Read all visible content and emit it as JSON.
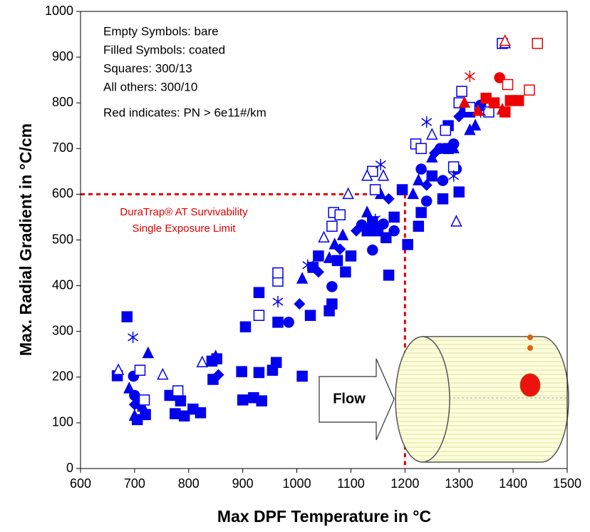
{
  "chart_data": {
    "type": "scatter",
    "x_label": "Max DPF Temperature in °C",
    "y_label": "Max. Radial Gradient in °C/cm",
    "notes": [
      "Empty Symbols: bare",
      "Filled Symbols: coated",
      "Squares: 300/13",
      "All others: 300/10",
      "Red indicates: PN > 6e11#/km"
    ],
    "limit_label": [
      "DuraTrap® AT Survivability",
      "Single Exposure Limit"
    ],
    "flow_label": "Flow",
    "limit": {
      "x": 1200,
      "y": 600,
      "color": "#e00000"
    },
    "xlim": [
      600,
      1500
    ],
    "xticks": [
      600,
      700,
      800,
      900,
      1000,
      1100,
      1200,
      1300,
      1400,
      1500
    ],
    "ylim": [
      0,
      1000
    ],
    "yticks": [
      0,
      100,
      200,
      300,
      400,
      500,
      600,
      700,
      800,
      900,
      1000
    ],
    "series": [
      {
        "color": "#0000ee",
        "marker": "square",
        "filled": true,
        "x": [
          686,
          668,
          705,
          720,
          765,
          785,
          792,
          775,
          808,
          822,
          843,
          845,
          852,
          898,
          900,
          905,
          920,
          930,
          935,
          930,
          955,
          962,
          965,
          1010,
          1025,
          1030,
          1040,
          1060,
          1065,
          1075,
          1090,
          1100,
          1130,
          1140,
          1150,
          1165,
          1170,
          1180,
          1195,
          1205,
          1225,
          1230,
          1250,
          1270,
          1300,
          1280,
          1320,
          1280
        ],
        "values": [
          332,
          203,
          107,
          118,
          160,
          148,
          115,
          120,
          130,
          122,
          235,
          195,
          240,
          212,
          150,
          310,
          155,
          210,
          148,
          385,
          215,
          232,
          320,
          202,
          335,
          440,
          465,
          345,
          360,
          455,
          430,
          465,
          520,
          540,
          520,
          505,
          423,
          550,
          610,
          490,
          530,
          560,
          640,
          590,
          605,
          750,
          780,
          700
        ]
      },
      {
        "color": "#0000ee",
        "marker": "circle",
        "filled": true,
        "x": [
          698,
          700,
          710,
          985,
          1065,
          1120,
          1140,
          1160,
          1180,
          1240,
          1230,
          1270,
          1290,
          1295,
          1310,
          1340,
          1265
        ],
        "values": [
          202,
          160,
          140,
          320,
          398,
          533,
          478,
          535,
          520,
          585,
          655,
          630,
          710,
          655,
          780,
          795,
          700
        ]
      },
      {
        "color": "#0000ee",
        "marker": "triangle",
        "filled": true,
        "x": [
          690,
          700,
          715,
          725,
          850,
          1010,
          1030,
          1060,
          1070,
          1085,
          1130,
          1155,
          1215,
          1225,
          1250,
          1290,
          1320,
          1330
        ],
        "values": [
          175,
          115,
          135,
          252,
          245,
          415,
          440,
          460,
          490,
          510,
          560,
          600,
          600,
          630,
          680,
          700,
          740,
          750
        ]
      },
      {
        "color": "#0000ee",
        "marker": "diamond",
        "filled": true,
        "x": [
          700,
          855,
          1005,
          1040,
          1080,
          1110,
          1170,
          1240,
          1255,
          1300
        ],
        "values": [
          140,
          205,
          360,
          430,
          480,
          520,
          590,
          620,
          690,
          770
        ]
      },
      {
        "color": "#0000ee",
        "marker": "square",
        "filled": false,
        "x": [
          710,
          718,
          780,
          930,
          965,
          965,
          1065,
          1068,
          1080,
          1140,
          1145,
          1220,
          1230,
          1275,
          1300,
          1305,
          1290,
          1320,
          1355,
          1380
        ],
        "values": [
          215,
          150,
          170,
          335,
          410,
          428,
          530,
          560,
          555,
          650,
          610,
          710,
          700,
          740,
          800,
          825,
          660,
          790,
          780,
          930
        ]
      },
      {
        "color": "#0000ee",
        "marker": "triangle",
        "filled": false,
        "x": [
          670,
          752,
          825,
          1050,
          1095,
          1130,
          1160,
          1295,
          1250,
          1385
        ],
        "values": [
          215,
          205,
          232,
          505,
          600,
          640,
          640,
          540,
          730,
          930
        ]
      },
      {
        "color": "#0000ee",
        "marker": "asterisk",
        "filled": false,
        "x": [
          697,
          965,
          1020,
          1145,
          1155,
          1240,
          1290,
          1340
        ],
        "values": [
          287,
          365,
          445,
          545,
          665,
          758,
          640,
          780
        ]
      },
      {
        "color": "#ee0000",
        "marker": "square",
        "filled": true,
        "x": [
          1350,
          1365,
          1395,
          1410,
          1385
        ],
        "values": [
          810,
          800,
          805,
          805,
          780
        ]
      },
      {
        "color": "#ee0000",
        "marker": "circle",
        "filled": true,
        "x": [
          1375
        ],
        "values": [
          855
        ]
      },
      {
        "color": "#ee0000",
        "marker": "triangle",
        "filled": true,
        "x": [
          1310,
          1335,
          1380
        ],
        "values": [
          800,
          782,
          785
        ]
      },
      {
        "color": "#ee0000",
        "marker": "square",
        "filled": false,
        "x": [
          1390,
          1430,
          1445
        ],
        "values": [
          840,
          828,
          930
        ]
      },
      {
        "color": "#ee0000",
        "marker": "triangle",
        "filled": false,
        "x": [
          1385
        ],
        "values": [
          935
        ]
      },
      {
        "color": "#ee0000",
        "marker": "asterisk",
        "filled": false,
        "x": [
          1320
        ],
        "values": [
          858
        ]
      }
    ]
  }
}
